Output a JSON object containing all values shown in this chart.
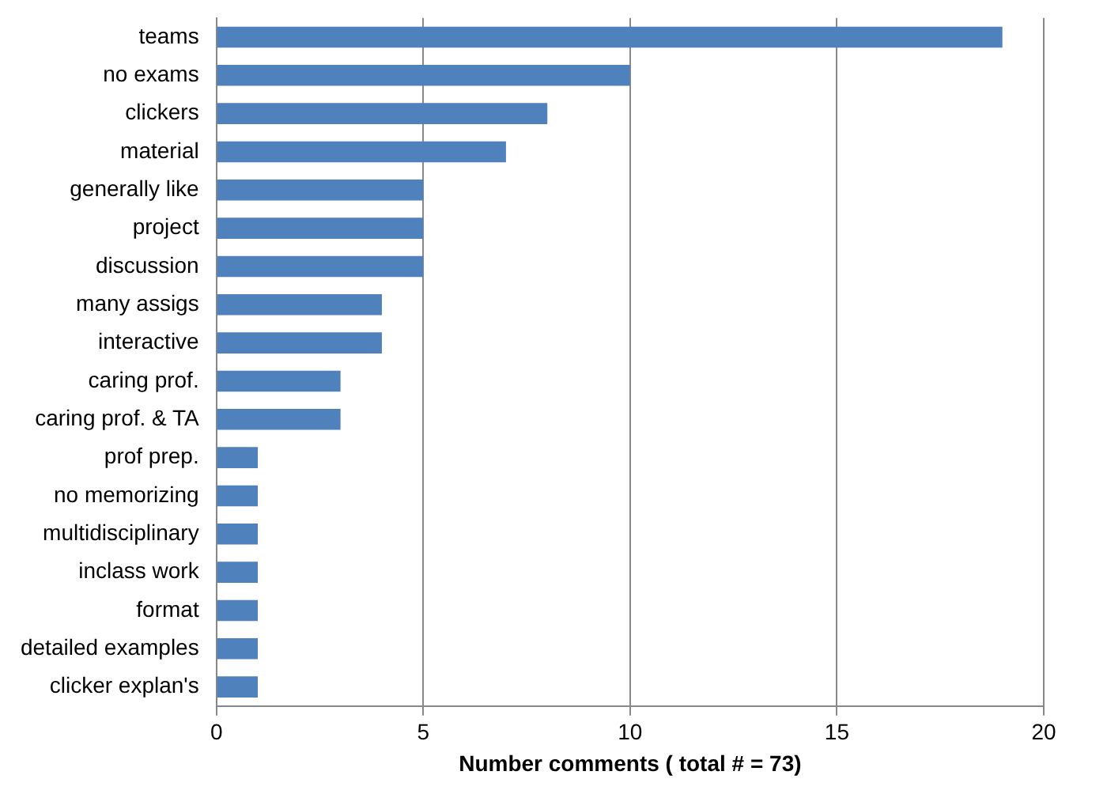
{
  "chart_data": {
    "type": "bar",
    "orientation": "horizontal",
    "xlabel": "Number comments ( total # = 73)",
    "categories": [
      "teams",
      "no exams",
      "clickers",
      "material",
      "generally like",
      "project",
      "discussion",
      "many assigs",
      "interactive",
      "caring prof.",
      "caring prof. & TA",
      "prof prep.",
      "no memorizing",
      "multidisciplinary",
      "inclass work",
      "format",
      "detailed examples",
      "clicker explan's"
    ],
    "values": [
      19,
      10,
      8,
      7,
      5,
      5,
      5,
      4,
      4,
      3,
      3,
      1,
      1,
      1,
      1,
      1,
      1,
      1
    ],
    "color": "#4f81bd",
    "xlim": [
      0,
      20
    ],
    "xticks": [
      0,
      5,
      10,
      15,
      20
    ],
    "grid": "x",
    "legend": false
  }
}
